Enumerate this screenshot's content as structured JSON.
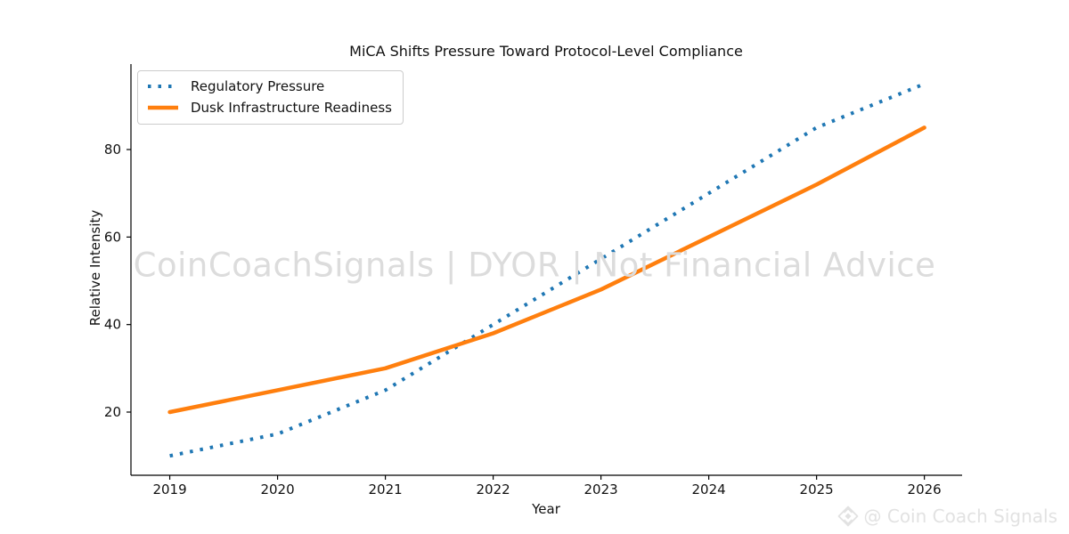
{
  "title": "MiCA Shifts Pressure Toward Protocol-Level Compliance",
  "watermarks": {
    "center": "CoinCoachSignals | DYOR | Not Financial Advice",
    "corner": "@ Coin Coach Signals",
    "corner_icon": "diamond-logo-icon"
  },
  "colors": {
    "regulatory_pressure": "#1f77b4",
    "dusk_readiness": "#ff7f0e",
    "axis": "#000000",
    "center_watermark": "#dcdcdc",
    "corner_watermark": "#e2e2e2",
    "legend_border": "#cccccc"
  },
  "chart_data": {
    "type": "line",
    "title": "MiCA Shifts Pressure Toward Protocol-Level Compliance",
    "xlabel": "Year",
    "ylabel": "Relative Intensity",
    "x": [
      2019,
      2020,
      2021,
      2022,
      2023,
      2024,
      2025,
      2026
    ],
    "series": [
      {
        "name": "Regulatory Pressure",
        "color": "#1f77b4",
        "line_style": "dotted",
        "values": [
          10,
          15,
          25,
          40,
          55,
          70,
          85,
          95
        ]
      },
      {
        "name": "Dusk Infrastructure Readiness",
        "color": "#ff7f0e",
        "line_style": "solid",
        "values": [
          20,
          25,
          30,
          38,
          48,
          60,
          72,
          85
        ]
      }
    ],
    "yticks": [
      20,
      40,
      60,
      80
    ],
    "xlim": [
      2018.64,
      2026.35
    ],
    "ylim": [
      5.56,
      99.53
    ],
    "grid": false,
    "legend_position": "upper left"
  }
}
